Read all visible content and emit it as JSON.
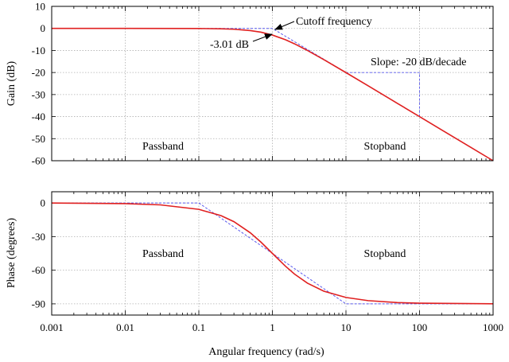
{
  "chart_data": [
    {
      "id": "magnitude",
      "type": "line",
      "xscale": "log",
      "xlim": [
        0.001,
        1000
      ],
      "ylim": [
        -60,
        10
      ],
      "yticks": [
        10,
        0,
        -10,
        -20,
        -30,
        -40,
        -50,
        -60
      ],
      "ylabel": "Gain (dB)",
      "grid": true,
      "series": [
        {
          "role": "actual",
          "color": "#e02020",
          "x": [
            0.001,
            0.01,
            0.1,
            0.2,
            0.3,
            0.5,
            0.7,
            1,
            1.5,
            2,
            3,
            5,
            10,
            20,
            50,
            100,
            200,
            500,
            1000
          ],
          "y": [
            0,
            0,
            -0.04,
            -0.17,
            -0.37,
            -0.97,
            -1.7,
            -3.01,
            -5.12,
            -6.99,
            -10.0,
            -14.15,
            -20.04,
            -26.02,
            -33.98,
            -40,
            -46.02,
            -53.98,
            -60
          ]
        },
        {
          "role": "asymptote",
          "color": "#5a5aee",
          "x": [
            0.001,
            1,
            1000
          ],
          "y": [
            0,
            0,
            -60
          ]
        }
      ],
      "annotations": [
        {
          "text": "Cutoff frequency",
          "arrow_to": [
            1,
            0
          ]
        },
        {
          "text": "-3.01 dB",
          "arrow_to": [
            1,
            -3.01
          ]
        },
        {
          "text": "Slope: -20 dB/decade",
          "x": 10,
          "y": -20
        },
        {
          "text": "Passband",
          "x": 0.03,
          "y": -53
        },
        {
          "text": "Stopband",
          "x": 30,
          "y": -53
        }
      ],
      "slope_guide": {
        "x": [
          10,
          100,
          100
        ],
        "y": [
          -20,
          -20,
          -40
        ]
      }
    },
    {
      "id": "phase",
      "type": "line",
      "xscale": "log",
      "xlim": [
        0.001,
        1000
      ],
      "ylim": [
        -100,
        10
      ],
      "yticks": [
        0,
        -30,
        -60,
        -90
      ],
      "xticks": [
        0.001,
        0.01,
        0.1,
        1,
        10,
        100,
        1000
      ],
      "xticklabels": [
        "0.001",
        "0.01",
        "0.1",
        "1",
        "10",
        "100",
        "1000"
      ],
      "xlabel": "Angular frequency (rad/s)",
      "ylabel": "Phase (degrees)",
      "grid": true,
      "series": [
        {
          "role": "actual",
          "color": "#e02020",
          "x": [
            0.001,
            0.01,
            0.03,
            0.1,
            0.2,
            0.3,
            0.5,
            0.7,
            1,
            1.5,
            2,
            3,
            5,
            10,
            20,
            50,
            100,
            1000
          ],
          "y": [
            -0.06,
            -0.57,
            -1.72,
            -5.71,
            -11.31,
            -16.7,
            -26.57,
            -34.99,
            -45,
            -56.31,
            -63.43,
            -71.57,
            -78.69,
            -84.29,
            -87.14,
            -88.85,
            -89.43,
            -89.94
          ]
        },
        {
          "role": "asymptote",
          "color": "#5a5aee",
          "x": [
            0.001,
            0.1,
            10,
            1000
          ],
          "y": [
            0,
            0,
            -90,
            -90
          ]
        }
      ],
      "annotations": [
        {
          "text": "Passband",
          "x": 0.03,
          "y": -45
        },
        {
          "text": "Stopband",
          "x": 30,
          "y": -45
        }
      ]
    }
  ]
}
